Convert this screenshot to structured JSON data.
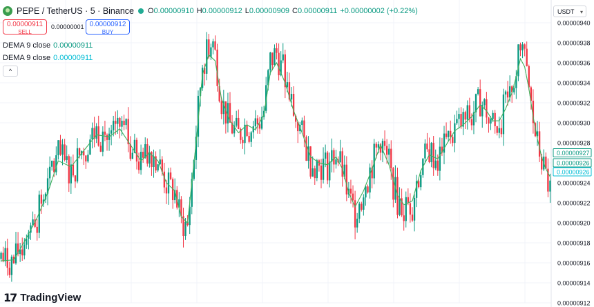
{
  "header": {
    "title": "PEPE / TetherUS · 5 · Binance",
    "ohlc": [
      {
        "key": "O",
        "value": "0.00000910"
      },
      {
        "key": "H",
        "value": "0.00000912"
      },
      {
        "key": "L",
        "value": "0.00000909"
      },
      {
        "key": "C",
        "value": "0.00000911"
      }
    ],
    "change": "+0.00000002 (+0.22%)"
  },
  "trade": {
    "sell_price": "0.00000911",
    "sell_label": "SELL",
    "spread": "0.00000001",
    "buy_price": "0.00000912",
    "buy_label": "BUY"
  },
  "indicators": [
    {
      "label": "DEMA 9 close",
      "value": "0.00000911",
      "color": "#089981"
    },
    {
      "label": "DEMA 9 close",
      "value": "0.00000911",
      "color": "#00bcd4"
    }
  ],
  "collapse_label": "^",
  "currency": "USDT",
  "branding": "TradingView",
  "colors": {
    "up": "#089981",
    "down": "#f23645",
    "dema1": "#4caf50",
    "dema2": "#00bcd4"
  },
  "chart_data": {
    "type": "candlestick",
    "price_scale_decimals": 8,
    "ylim": [
      9.12e-06,
      9.4e-06
    ],
    "y_ticks": [
      "0.00000940",
      "0.00000938",
      "0.00000936",
      "0.00000934",
      "0.00000932",
      "0.00000930",
      "0.00000928",
      "0.00000926",
      "0.00000924",
      "0.00000922",
      "0.00000920",
      "0.00000918",
      "0.00000916",
      "0.00000914",
      "0.00000912"
    ],
    "grid": true,
    "price_labels": [
      {
        "value": "0.00000927",
        "color": "#089981"
      },
      {
        "value": "0.00000926",
        "color": "#089981"
      },
      {
        "value": "0.00000926",
        "color": "#00bcd4"
      }
    ],
    "anchors": [
      [
        0,
        9.164e-06
      ],
      [
        6,
        9.16e-06
      ],
      [
        12,
        9.192e-06
      ],
      [
        17,
        9.208e-06
      ],
      [
        22,
        9.236e-06
      ],
      [
        27,
        9.268e-06
      ],
      [
        33,
        9.252e-06
      ],
      [
        39,
        9.276e-06
      ],
      [
        45,
        9.292e-06
      ],
      [
        51,
        9.284e-06
      ],
      [
        56,
        9.298e-06
      ],
      [
        61,
        9.275e-06
      ],
      [
        66,
        9.258e-06
      ],
      [
        70,
        9.274e-06
      ],
      [
        74,
        9.262e-06
      ],
      [
        78,
        9.238e-06
      ],
      [
        82,
        9.23e-06
      ],
      [
        85,
        9.2e-06
      ],
      [
        88,
        9.196e-06
      ],
      [
        92,
        9.29e-06
      ],
      [
        95,
        9.36e-06
      ],
      [
        98,
        9.38e-06
      ],
      [
        101,
        9.368e-06
      ],
      [
        104,
        9.322e-06
      ],
      [
        108,
        9.298e-06
      ],
      [
        112,
        9.288e-06
      ],
      [
        116,
        9.3e-06
      ],
      [
        120,
        9.292e-06
      ],
      [
        124,
        9.312e-06
      ],
      [
        127,
        9.362e-06
      ],
      [
        130,
        9.37e-06
      ],
      [
        134,
        9.342e-06
      ],
      [
        138,
        9.312e-06
      ],
      [
        142,
        9.288e-06
      ],
      [
        146,
        9.262e-06
      ],
      [
        150,
        9.258e-06
      ],
      [
        154,
        9.258e-06
      ],
      [
        158,
        9.27e-06
      ],
      [
        161,
        9.252e-06
      ],
      [
        164,
        9.224e-06
      ],
      [
        167,
        9.21e-06
      ],
      [
        171,
        9.236e-06
      ],
      [
        175,
        9.258e-06
      ],
      [
        179,
        9.284e-06
      ],
      [
        183,
        9.256e-06
      ],
      [
        187,
        9.222e-06
      ],
      [
        190,
        9.214e-06
      ],
      [
        194,
        9.222e-06
      ],
      [
        198,
        9.258e-06
      ],
      [
        202,
        9.272e-06
      ],
      [
        206,
        9.262e-06
      ],
      [
        210,
        9.28e-06
      ],
      [
        214,
        9.295e-06
      ],
      [
        218,
        9.3e-06
      ],
      [
        222,
        9.308e-06
      ],
      [
        226,
        9.322e-06
      ],
      [
        229,
        9.312e-06
      ],
      [
        232,
        9.3e-06
      ],
      [
        235,
        9.302e-06
      ],
      [
        238,
        9.318e-06
      ],
      [
        241,
        9.335e-06
      ],
      [
        243,
        9.352e-06
      ],
      [
        245,
        9.375e-06
      ],
      [
        247,
        9.36e-06
      ],
      [
        249,
        9.332e-06
      ],
      [
        251,
        9.3e-06
      ],
      [
        253,
        9.278e-06
      ],
      [
        255,
        9.262e-06
      ],
      [
        257,
        9.246e-06
      ],
      [
        259,
        9.232e-06
      ]
    ],
    "dema": [
      [
        0,
        9.162e-06
      ],
      [
        6,
        9.163e-06
      ],
      [
        12,
        9.185e-06
      ],
      [
        17,
        9.205e-06
      ],
      [
        22,
        9.23e-06
      ],
      [
        27,
        9.262e-06
      ],
      [
        33,
        9.256e-06
      ],
      [
        39,
        9.272e-06
      ],
      [
        45,
        9.288e-06
      ],
      [
        51,
        9.286e-06
      ],
      [
        56,
        9.294e-06
      ],
      [
        61,
        9.278e-06
      ],
      [
        66,
        9.262e-06
      ],
      [
        70,
        9.27e-06
      ],
      [
        74,
        9.262e-06
      ],
      [
        78,
        9.24e-06
      ],
      [
        82,
        9.232e-06
      ],
      [
        85,
        9.206e-06
      ],
      [
        88,
        9.2e-06
      ],
      [
        92,
        9.28e-06
      ],
      [
        95,
        9.348e-06
      ],
      [
        98,
        9.368e-06
      ],
      [
        101,
        9.362e-06
      ],
      [
        104,
        9.324e-06
      ],
      [
        108,
        9.302e-06
      ],
      [
        112,
        9.29e-06
      ],
      [
        116,
        9.298e-06
      ],
      [
        120,
        9.293e-06
      ],
      [
        124,
        9.308e-06
      ],
      [
        127,
        9.35e-06
      ],
      [
        130,
        9.36e-06
      ],
      [
        134,
        9.34e-06
      ],
      [
        138,
        9.312e-06
      ],
      [
        142,
        9.29e-06
      ],
      [
        146,
        9.266e-06
      ],
      [
        150,
        9.26e-06
      ],
      [
        154,
        9.258e-06
      ],
      [
        158,
        9.266e-06
      ],
      [
        161,
        9.254e-06
      ],
      [
        164,
        9.23e-06
      ],
      [
        167,
        9.216e-06
      ],
      [
        171,
        9.232e-06
      ],
      [
        175,
        9.254e-06
      ],
      [
        179,
        9.278e-06
      ],
      [
        183,
        9.258e-06
      ],
      [
        187,
        9.228e-06
      ],
      [
        190,
        9.218e-06
      ],
      [
        194,
        9.222e-06
      ],
      [
        198,
        9.252e-06
      ],
      [
        202,
        9.268e-06
      ],
      [
        206,
        9.264e-06
      ],
      [
        210,
        9.278e-06
      ],
      [
        214,
        9.292e-06
      ],
      [
        218,
        9.298e-06
      ],
      [
        222,
        9.306e-06
      ],
      [
        226,
        9.318e-06
      ],
      [
        229,
        9.312e-06
      ],
      [
        232,
        9.302e-06
      ],
      [
        235,
        9.302e-06
      ],
      [
        238,
        9.314e-06
      ],
      [
        241,
        9.33e-06
      ],
      [
        243,
        9.346e-06
      ],
      [
        245,
        9.364e-06
      ],
      [
        247,
        9.356e-06
      ],
      [
        249,
        9.334e-06
      ],
      [
        251,
        9.306e-06
      ],
      [
        253,
        9.284e-06
      ],
      [
        255,
        9.266e-06
      ],
      [
        257,
        9.254e-06
      ],
      [
        259,
        9.246e-06
      ]
    ]
  }
}
